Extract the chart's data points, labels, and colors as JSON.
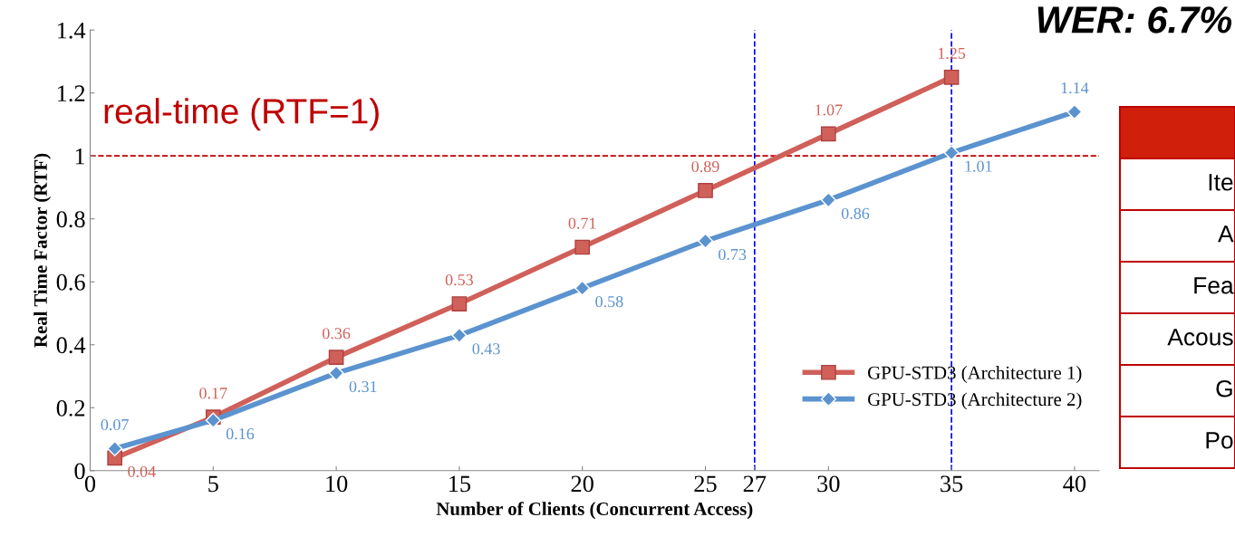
{
  "chart_data": {
    "type": "line",
    "title": "WER: 6.7%",
    "xlabel": "Number of Clients (Concurrent Access)",
    "ylabel": "Real Time Factor (RTF)",
    "series": [
      {
        "name": "GPU-STD3 (Architecture 1)",
        "color": "#d0605a",
        "marker": "square",
        "x": [
          1,
          5,
          10,
          15,
          20,
          25,
          30,
          35
        ],
        "values": [
          0.04,
          0.17,
          0.36,
          0.53,
          0.71,
          0.89,
          1.07,
          1.25
        ]
      },
      {
        "name": "GPU-STD3 (Architecture 2)",
        "color": "#5b93cf",
        "marker": "diamond",
        "x": [
          1,
          5,
          10,
          15,
          20,
          25,
          30,
          35,
          40
        ],
        "values": [
          0.07,
          0.16,
          0.31,
          0.43,
          0.58,
          0.73,
          0.86,
          1.01,
          1.14
        ]
      }
    ],
    "xlim": [
      0,
      41
    ],
    "xticks": [
      0,
      5,
      10,
      15,
      20,
      25,
      27,
      30,
      35,
      40
    ],
    "ylim": [
      0,
      1.4
    ],
    "yticks": [
      0,
      {
        "value": 0.2,
        "label": "0.2"
      },
      {
        "value": 0.4,
        "label": "0.4"
      },
      {
        "value": 0.6,
        "label": "0.6"
      },
      {
        "value": 0.8,
        "label": "0.8"
      },
      1,
      {
        "value": 1.2,
        "label": "1.2"
      },
      {
        "value": 1.4,
        "label": "1.4"
      }
    ],
    "ref_lines": [
      {
        "axis": "y",
        "value": 1,
        "label": "real-time (RTF=1)",
        "color": "#c00000",
        "line_style": "dashed"
      },
      {
        "axis": "x",
        "value": 27,
        "color": "#0000ff",
        "line_style": "dashed"
      },
      {
        "axis": "x",
        "value": 35,
        "color": "#0000ff",
        "line_style": "dashed"
      }
    ],
    "annotations": [
      "Ite",
      "A",
      "Fea",
      "Acous",
      "G",
      "Po"
    ],
    "data_labels": true,
    "grid": false,
    "legend": "bottom right",
    "line_style": "solid"
  }
}
